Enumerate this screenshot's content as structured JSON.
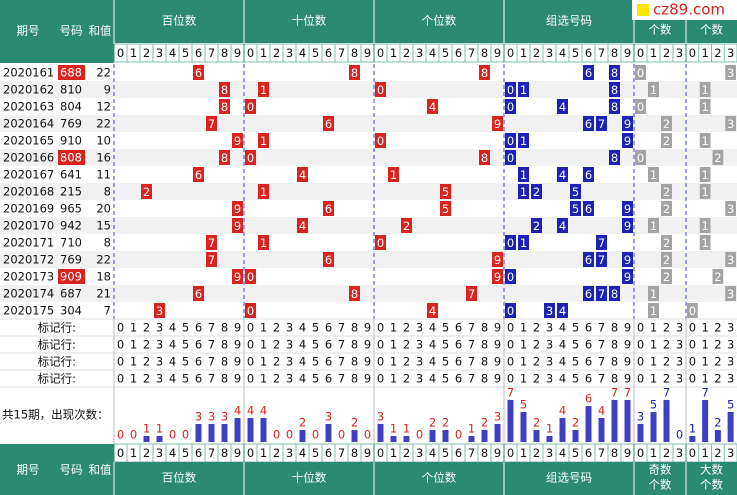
{
  "logo": "cz89.com",
  "header": {
    "period": "期号",
    "number": "号码",
    "sum": "和值",
    "sections": [
      "百位数",
      "十位数",
      "个位数",
      "组选号码",
      "个数",
      "个数"
    ]
  },
  "digits": [
    0,
    1,
    2,
    3,
    4,
    5,
    6,
    7,
    8,
    9
  ],
  "count_digits": [
    0,
    1,
    2,
    3
  ],
  "rows": [
    {
      "period": "2020161",
      "number": "688",
      "sum": 22,
      "pair": true,
      "bai": 6,
      "shi": 8,
      "ge": 8,
      "group": [
        6,
        8
      ],
      "odd": 0,
      "big": 3
    },
    {
      "period": "2020162",
      "number": "810",
      "sum": 9,
      "pair": false,
      "bai": 8,
      "shi": 1,
      "ge": 0,
      "group": [
        0,
        1,
        8
      ],
      "odd": 1,
      "big": 1
    },
    {
      "period": "2020163",
      "number": "804",
      "sum": 12,
      "pair": false,
      "bai": 8,
      "shi": 0,
      "ge": 4,
      "group": [
        0,
        4,
        8
      ],
      "odd": 0,
      "big": 1
    },
    {
      "period": "2020164",
      "number": "769",
      "sum": 22,
      "pair": false,
      "bai": 7,
      "shi": 6,
      "ge": 9,
      "group": [
        6,
        7,
        9
      ],
      "odd": 2,
      "big": 3
    },
    {
      "period": "2020165",
      "number": "910",
      "sum": 10,
      "pair": false,
      "bai": 9,
      "shi": 1,
      "ge": 0,
      "group": [
        0,
        1,
        9
      ],
      "odd": 2,
      "big": 1
    },
    {
      "period": "2020166",
      "number": "808",
      "sum": 16,
      "pair": true,
      "bai": 8,
      "shi": 0,
      "ge": 8,
      "group": [
        0,
        8
      ],
      "odd": 0,
      "big": 2
    },
    {
      "period": "2020167",
      "number": "641",
      "sum": 11,
      "pair": false,
      "bai": 6,
      "shi": 4,
      "ge": 1,
      "group": [
        1,
        4,
        6
      ],
      "odd": 1,
      "big": 1
    },
    {
      "period": "2020168",
      "number": "215",
      "sum": 8,
      "pair": false,
      "bai": 2,
      "shi": 1,
      "ge": 5,
      "group": [
        1,
        2,
        5
      ],
      "odd": 2,
      "big": 1
    },
    {
      "period": "2020169",
      "number": "965",
      "sum": 20,
      "pair": false,
      "bai": 9,
      "shi": 6,
      "ge": 5,
      "group": [
        5,
        6,
        9
      ],
      "odd": 2,
      "big": 3
    },
    {
      "period": "2020170",
      "number": "942",
      "sum": 15,
      "pair": false,
      "bai": 9,
      "shi": 4,
      "ge": 2,
      "group": [
        2,
        4,
        9
      ],
      "odd": 1,
      "big": 1
    },
    {
      "period": "2020171",
      "number": "710",
      "sum": 8,
      "pair": false,
      "bai": 7,
      "shi": 1,
      "ge": 0,
      "group": [
        0,
        1,
        7
      ],
      "odd": 2,
      "big": 1
    },
    {
      "period": "2020172",
      "number": "769",
      "sum": 22,
      "pair": false,
      "bai": 7,
      "shi": 6,
      "ge": 9,
      "group": [
        6,
        7,
        9
      ],
      "odd": 2,
      "big": 3
    },
    {
      "period": "2020173",
      "number": "909",
      "sum": 18,
      "pair": true,
      "bai": 9,
      "shi": 0,
      "ge": 9,
      "group": [
        0,
        9
      ],
      "odd": 2,
      "big": 2
    },
    {
      "period": "2020174",
      "number": "687",
      "sum": 21,
      "pair": false,
      "bai": 6,
      "shi": 8,
      "ge": 7,
      "group": [
        6,
        7,
        8
      ],
      "odd": 1,
      "big": 3
    },
    {
      "period": "2020175",
      "number": "304",
      "sum": 7,
      "pair": false,
      "bai": 3,
      "shi": 0,
      "ge": 4,
      "group": [
        0,
        3,
        4
      ],
      "odd": 1,
      "big": 0
    }
  ],
  "marker_rows": [
    "标记行:",
    "标记行:",
    "标记行:",
    "标记行:"
  ],
  "count_label": "共15期，出现次数：",
  "counts": {
    "bai": [
      0,
      0,
      1,
      1,
      0,
      0,
      3,
      3,
      3,
      4
    ],
    "shi": [
      4,
      4,
      0,
      0,
      2,
      0,
      3,
      0,
      2,
      0
    ],
    "ge": [
      3,
      1,
      1,
      0,
      2,
      2,
      0,
      1,
      2,
      3
    ],
    "group": [
      7,
      5,
      2,
      1,
      4,
      2,
      6,
      4,
      7,
      7
    ],
    "odd": [
      3,
      5,
      7,
      0
    ],
    "big": [
      1,
      7,
      2,
      5
    ]
  },
  "footer": {
    "period": "期号",
    "number": "号码",
    "sum": "和值",
    "sections": [
      "百位数",
      "十位数",
      "个位数",
      "组选号码",
      [
        "奇数",
        "个数"
      ],
      [
        "大数",
        "个数"
      ]
    ]
  }
}
